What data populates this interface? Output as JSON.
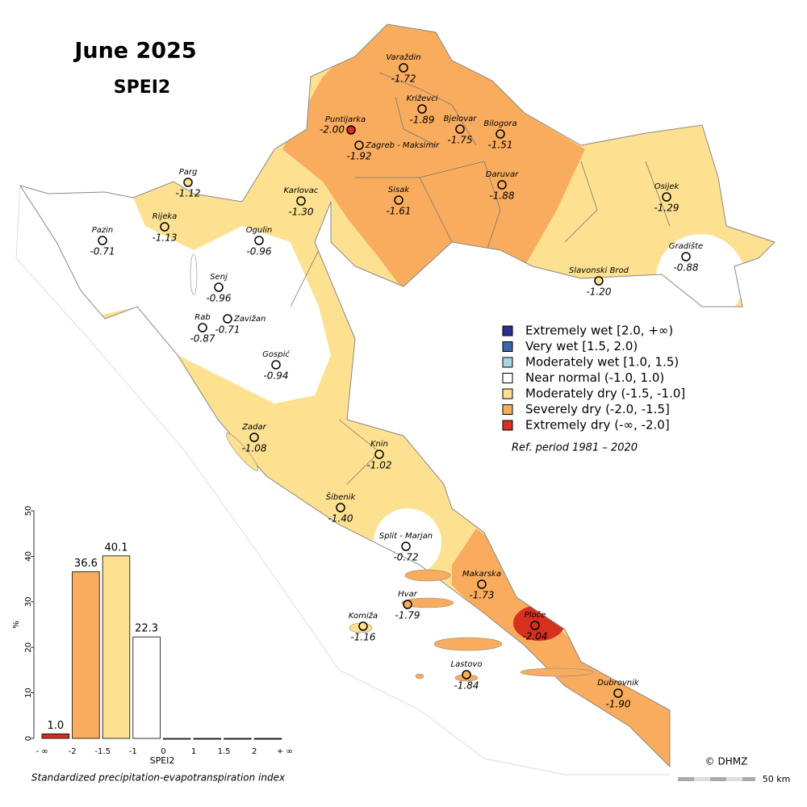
{
  "header": {
    "title": "June 2025",
    "subtitle": "SPEI2"
  },
  "stations": [
    {
      "name": "Varaždin",
      "value": "-1.72"
    },
    {
      "name": "Križevci",
      "value": "-1.89"
    },
    {
      "name": "Bjelovar",
      "value": "-1.75"
    },
    {
      "name": "Bilogora",
      "value": "-1.51"
    },
    {
      "name": "Puntijarka",
      "value": "-2.00"
    },
    {
      "name": "Zagreb - Maksimir",
      "value": "-1.92"
    },
    {
      "name": "Karlovac",
      "value": "-1.30"
    },
    {
      "name": "Sisak",
      "value": "-1.61"
    },
    {
      "name": "Daruvar",
      "value": "-1.88"
    },
    {
      "name": "Osijek",
      "value": "-1.29"
    },
    {
      "name": "Parg",
      "value": "-1.12"
    },
    {
      "name": "Rijeka",
      "value": "-1.13"
    },
    {
      "name": "Pazin",
      "value": "-0.71"
    },
    {
      "name": "Ogulin",
      "value": "-0.96"
    },
    {
      "name": "Slavonski Brod",
      "value": "-1.20"
    },
    {
      "name": "Gradište",
      "value": "-0.88"
    },
    {
      "name": "Senj",
      "value": "-0.96"
    },
    {
      "name": "Zavižan",
      "value": "-0.71"
    },
    {
      "name": "Rab",
      "value": "-0.87"
    },
    {
      "name": "Gospić",
      "value": "-0.94"
    },
    {
      "name": "Zadar",
      "value": "-1.08"
    },
    {
      "name": "Knin",
      "value": "-1.02"
    },
    {
      "name": "Šibenik",
      "value": "-1.40"
    },
    {
      "name": "Split - Marjan",
      "value": "-0.72"
    },
    {
      "name": "Makarska",
      "value": "-1.73"
    },
    {
      "name": "Hvar",
      "value": "-1.79"
    },
    {
      "name": "Komiža",
      "value": "-1.16"
    },
    {
      "name": "Ploče",
      "value": "-2.04"
    },
    {
      "name": "Lastovo",
      "value": "-1.84"
    },
    {
      "name": "Dubrovnik",
      "value": "-1.90"
    }
  ],
  "legend": {
    "entries": [
      {
        "label": "Extremely wet [2.0, +∞)",
        "color": "#2b2f8f"
      },
      {
        "label": "Very wet [1.5, 2.0)",
        "color": "#3a66b0"
      },
      {
        "label": "Moderately wet [1.0, 1.5)",
        "color": "#a8d4e6"
      },
      {
        "label": "Near normal (-1.0, 1.0)",
        "color": "#ffffff"
      },
      {
        "label": "Moderately dry (-1.5, -1.0]",
        "color": "#fde090"
      },
      {
        "label": "Severely dry (-2.0, -1.5]",
        "color": "#f9ac5e"
      },
      {
        "label": "Extremely dry (-∞, -2.0]",
        "color": "#d7301f"
      }
    ],
    "note": "Ref. period 1981 – 2020"
  },
  "chart_data": {
    "type": "histogram",
    "bins": [
      "- ∞",
      "-2",
      "-1.5",
      "-1",
      "0",
      "1",
      "1.5",
      "2",
      "+ ∞"
    ],
    "values": [
      1.0,
      36.6,
      40.1,
      22.3,
      0,
      0,
      0,
      0
    ],
    "value_labels": [
      "1.0",
      "36.6",
      "40.1",
      "22.3",
      null,
      null,
      null,
      null
    ],
    "colors": [
      "#d7301f",
      "#f9ac5e",
      "#fde090",
      "#ffffff",
      "#a8d4e6",
      "#3a66b0",
      "#3a66b0",
      "#2b2f8f"
    ],
    "ylim": [
      0,
      50
    ],
    "yticks": [
      0,
      10,
      20,
      30,
      40,
      50
    ],
    "ylabel": "%",
    "xlabel": "SPEI2",
    "caption": "Standardized precipitation-evapotranspiration index"
  },
  "footer": {
    "copyright": "© DHMZ",
    "scale": "50 km"
  }
}
